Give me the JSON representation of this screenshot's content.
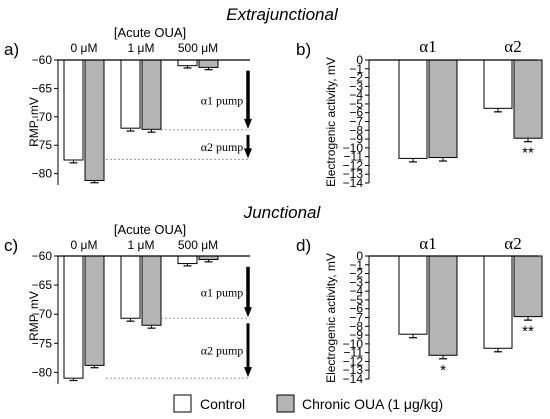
{
  "figure": {
    "section_top": "Extrajunctional",
    "section_bottom": "Junctional",
    "legend": {
      "control": "Control",
      "chronic": "Chronic OUA (1 μg/kg)"
    },
    "colors": {
      "control": "#ffffff",
      "chronic": "#b4b4b4",
      "stroke": "#000000",
      "reference_line": "#9a9a9a"
    }
  },
  "chart_data": [
    {
      "panel": "a)",
      "type": "bar",
      "header": "[Acute OUA]",
      "categories": [
        "0 μM",
        "1 μM",
        "500 μM"
      ],
      "ylabel": "RMP, mV",
      "ylim": [
        -60,
        -82
      ],
      "yticks": [
        -60,
        -65,
        -70,
        -75,
        -80
      ],
      "axis_position": "top",
      "series": [
        {
          "name": "Control",
          "values": [
            -77.6,
            -72.0,
            -61.0
          ],
          "errors": [
            0.5,
            0.5,
            0.4
          ]
        },
        {
          "name": "Chronic OUA (1 μg/kg)",
          "values": [
            -81.2,
            -72.2,
            -61.3
          ],
          "errors": [
            0.4,
            0.5,
            0.4
          ]
        }
      ],
      "annotations": [
        {
          "label": "α1 pump",
          "from": -61,
          "to": -72.3
        },
        {
          "label": "α2 pump",
          "from": -72.3,
          "to": -77.5
        }
      ]
    },
    {
      "panel": "b)",
      "type": "bar",
      "categories": [
        "α1",
        "α2"
      ],
      "ylabel": "Electrogenic activity, mV",
      "ylim": [
        0,
        -14
      ],
      "yticks": [
        0,
        -1,
        -2,
        -3,
        -4,
        -5,
        -6,
        -7,
        -8,
        -9,
        -10,
        -11,
        -12,
        -13,
        -14
      ],
      "axis_position": "top",
      "series": [
        {
          "name": "Control",
          "values": [
            -11.2,
            -5.5
          ],
          "errors": [
            0.4,
            0.4
          ]
        },
        {
          "name": "Chronic OUA (1 μg/kg)",
          "values": [
            -11.1,
            -8.9
          ],
          "errors": [
            0.4,
            0.4
          ]
        }
      ],
      "significance": [
        {
          "category": "α2",
          "series": "Chronic OUA (1 μg/kg)",
          "mark": "**"
        }
      ]
    },
    {
      "panel": "c)",
      "type": "bar",
      "header": "[Acute OUA]",
      "categories": [
        "0 μM",
        "1 μM",
        "500 μM"
      ],
      "ylabel": "RMP, mV",
      "ylim": [
        -60,
        -82
      ],
      "yticks": [
        -60,
        -65,
        -70,
        -75,
        -80
      ],
      "axis_position": "top",
      "series": [
        {
          "name": "Control",
          "values": [
            -81.0,
            -70.7,
            -61.3
          ],
          "errors": [
            0.4,
            0.5,
            0.4
          ]
        },
        {
          "name": "Chronic OUA (1 μg/kg)",
          "values": [
            -78.8,
            -71.9,
            -60.6
          ],
          "errors": [
            0.4,
            0.5,
            0.4
          ]
        }
      ],
      "annotations": [
        {
          "label": "α1 pump",
          "from": -61,
          "to": -70.7
        },
        {
          "label": "α2 pump",
          "from": -70.7,
          "to": -81
        }
      ]
    },
    {
      "panel": "d)",
      "type": "bar",
      "categories": [
        "α1",
        "α2"
      ],
      "ylabel": "Electrogenic activity, mV",
      "ylim": [
        0,
        -14
      ],
      "yticks": [
        0,
        -1,
        -2,
        -3,
        -4,
        -5,
        -6,
        -7,
        -8,
        -9,
        -10,
        -11,
        -12,
        -13,
        -14
      ],
      "axis_position": "top",
      "series": [
        {
          "name": "Control",
          "values": [
            -8.9,
            -10.5
          ],
          "errors": [
            0.4,
            0.4
          ]
        },
        {
          "name": "Chronic OUA (1 μg/kg)",
          "values": [
            -11.3,
            -6.9
          ],
          "errors": [
            0.4,
            0.4
          ]
        }
      ],
      "significance": [
        {
          "category": "α1",
          "series": "Chronic OUA (1 μg/kg)",
          "mark": "*"
        },
        {
          "category": "α2",
          "series": "Chronic OUA (1 μg/kg)",
          "mark": "**"
        }
      ]
    }
  ]
}
